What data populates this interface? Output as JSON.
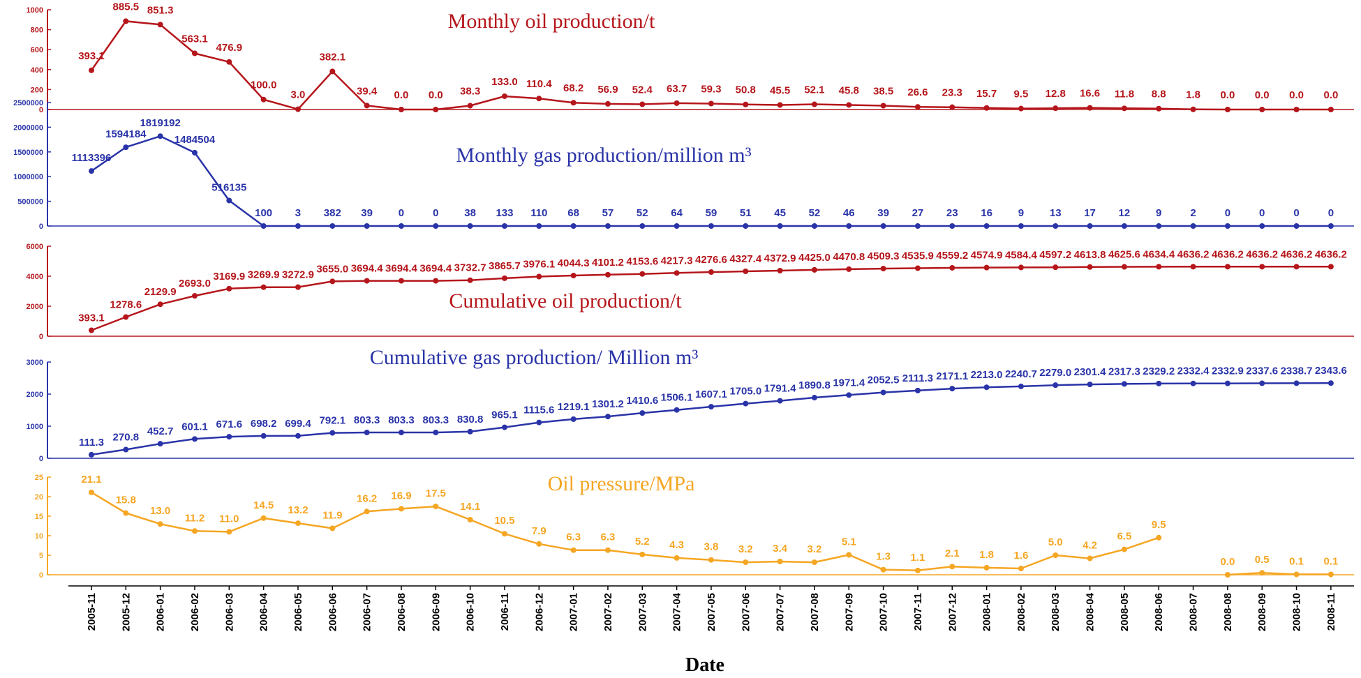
{
  "chart_data": {
    "type": "line",
    "xlabel": "Date",
    "categories": [
      "2005-11",
      "2005-12",
      "2006-01",
      "2006-02",
      "2006-03",
      "2006-04",
      "2006-05",
      "2006-06",
      "2006-07",
      "2006-08",
      "2006-09",
      "2006-10",
      "2006-11",
      "2006-12",
      "2007-01",
      "2007-02",
      "2007-03",
      "2007-04",
      "2007-05",
      "2007-06",
      "2007-07",
      "2007-08",
      "2007-09",
      "2007-10",
      "2007-11",
      "2007-12",
      "2008-01",
      "2008-02",
      "2008-03",
      "2008-04",
      "2008-05",
      "2008-06",
      "2008-07",
      "2008-08",
      "2008-09",
      "2008-10",
      "2008-11"
    ],
    "panels": [
      {
        "title": "Monthly oil production/t",
        "color": "#b5161b",
        "ylim": [
          0,
          1000
        ],
        "yticks": [
          0,
          200,
          400,
          600,
          800,
          1000
        ],
        "ytick_labels": [
          "0",
          "200",
          "400",
          "600",
          "800",
          "1000"
        ],
        "values": [
          393.1,
          885.5,
          851.3,
          563.1,
          476.9,
          100.0,
          3.0,
          382.1,
          39.4,
          0.0,
          0.0,
          38.3,
          133.0,
          110.4,
          68.2,
          56.9,
          52.4,
          63.7,
          59.3,
          50.8,
          45.5,
          52.1,
          45.8,
          38.5,
          26.6,
          23.3,
          15.7,
          9.5,
          12.8,
          16.6,
          11.8,
          8.8,
          1.8,
          0.0,
          0.0,
          0.0,
          0.0
        ],
        "labels": [
          "393.1",
          "885.5",
          "851.3",
          "563.1",
          "476.9",
          "100.0",
          "3.0",
          "382.1",
          "39.4",
          "0.0",
          "0.0",
          "38.3",
          "133.0",
          "110.4",
          "68.2",
          "56.9",
          "52.4",
          "63.7",
          "59.3",
          "50.8",
          "45.5",
          "52.1",
          "45.8",
          "38.5",
          "26.6",
          "23.3",
          "15.7",
          "9.5",
          "12.8",
          "16.6",
          "11.8",
          "8.8",
          "1.8",
          "0.0",
          "0.0",
          "0.0",
          "0.0"
        ]
      },
      {
        "title": "Monthly gas production/million m³",
        "color": "#2a34a8",
        "ylim": [
          0,
          2500000
        ],
        "yticks": [
          0,
          500000,
          1000000,
          1500000,
          2000000,
          2500000
        ],
        "ytick_labels": [
          "0",
          "500000",
          "1000000",
          "1500000",
          "2000000",
          "2500000"
        ],
        "values": [
          1113396,
          1594184,
          1819192,
          1484504,
          516135,
          100,
          3,
          382,
          39,
          0,
          0,
          38,
          133,
          110,
          68,
          57,
          52,
          64,
          59,
          51,
          45,
          52,
          46,
          39,
          27,
          23,
          16,
          9,
          13,
          17,
          12,
          9,
          2,
          0,
          0,
          0,
          0
        ],
        "labels": [
          "1113396",
          "1594184",
          "1819192",
          "1484504",
          "516135",
          "100",
          "3",
          "382",
          "39",
          "0",
          "0",
          "38",
          "133",
          "110",
          "68",
          "57",
          "52",
          "64",
          "59",
          "51",
          "45",
          "52",
          "46",
          "39",
          "27",
          "23",
          "16",
          "9",
          "13",
          "17",
          "12",
          "9",
          "2",
          "0",
          "0",
          "0",
          "0"
        ]
      },
      {
        "title": "Cumulative oil production/t",
        "color": "#b5161b",
        "ylim": [
          0,
          6000
        ],
        "yticks": [
          0,
          2000,
          4000,
          6000
        ],
        "ytick_labels": [
          "0",
          "2000",
          "4000",
          "6000"
        ],
        "values": [
          393.1,
          1278.6,
          2129.9,
          2693.0,
          3169.9,
          3269.9,
          3272.9,
          3655.0,
          3694.4,
          3694.4,
          3694.4,
          3732.7,
          3865.7,
          3976.1,
          4044.3,
          4101.2,
          4153.6,
          4217.3,
          4276.6,
          4327.4,
          4372.9,
          4425.0,
          4470.8,
          4509.3,
          4535.9,
          4559.2,
          4574.9,
          4584.4,
          4597.2,
          4613.8,
          4625.6,
          4634.4,
          4636.2,
          4636.2,
          4636.2,
          4636.2,
          4636.2
        ],
        "labels": [
          "393.1",
          "1278.6",
          "2129.9",
          "2693.0",
          "3169.9",
          "3269.9",
          "3272.9",
          "3655.0",
          "3694.4",
          "3694.4",
          "3694.4",
          "3732.7",
          "3865.7",
          "3976.1",
          "4044.3",
          "4101.2",
          "4153.6",
          "4217.3",
          "4276.6",
          "4327.4",
          "4372.9",
          "4425.0",
          "4470.8",
          "4509.3",
          "4535.9",
          "4559.2",
          "4574.9",
          "4584.4",
          "4597.2",
          "4613.8",
          "4625.6",
          "4634.4",
          "4636.2",
          "4636.2",
          "4636.2",
          "4636.2",
          "4636.2"
        ]
      },
      {
        "title": "Cumulative gas production/ Million m³",
        "color": "#2a34a8",
        "ylim": [
          0,
          3000
        ],
        "yticks": [
          0,
          1000,
          2000,
          3000
        ],
        "ytick_labels": [
          "0",
          "1000",
          "2000",
          "3000"
        ],
        "values": [
          111.3,
          270.8,
          452.7,
          601.1,
          671.6,
          698.2,
          699.4,
          792.1,
          803.3,
          803.3,
          803.3,
          830.8,
          965.1,
          1115.6,
          1219.1,
          1301.2,
          1410.6,
          1506.1,
          1607.1,
          1705.0,
          1791.4,
          1890.8,
          1971.4,
          2052.5,
          2111.3,
          2171.1,
          2213.0,
          2240.7,
          2279.0,
          2301.4,
          2317.3,
          2329.2,
          2332.4,
          2332.9,
          2337.6,
          2338.7,
          2343.6
        ],
        "labels": [
          "111.3",
          "270.8",
          "452.7",
          "601.1",
          "671.6",
          "698.2",
          "699.4",
          "792.1",
          "803.3",
          "803.3",
          "803.3",
          "830.8",
          "965.1",
          "1115.6",
          "1219.1",
          "1301.2",
          "1410.6",
          "1506.1",
          "1607.1",
          "1705.0",
          "1791.4",
          "1890.8",
          "1971.4",
          "2052.5",
          "2111.3",
          "2171.1",
          "2213.0",
          "2240.7",
          "2279.0",
          "2301.4",
          "2317.3",
          "2329.2",
          "2332.4",
          "2332.9",
          "2337.6",
          "2338.7",
          "2343.6"
        ]
      },
      {
        "title": "Oil pressure/MPa",
        "color": "#f5a623",
        "ylim": [
          0,
          25
        ],
        "yticks": [
          0,
          5,
          10,
          15,
          20,
          25
        ],
        "ytick_labels": [
          "0",
          "5",
          "10",
          "15",
          "20",
          "25"
        ],
        "values": [
          21.1,
          15.8,
          13.0,
          11.2,
          11.0,
          14.5,
          13.2,
          11.9,
          16.2,
          16.9,
          17.5,
          14.1,
          10.5,
          7.9,
          6.3,
          6.3,
          5.2,
          4.3,
          3.8,
          3.2,
          3.4,
          3.2,
          5.1,
          1.3,
          1.1,
          2.1,
          1.8,
          1.6,
          5.0,
          4.2,
          6.5,
          9.5,
          null,
          0.0,
          0.5,
          0.1,
          0.1
        ],
        "labels": [
          "21.1",
          "15.8",
          "13.0",
          "11.2",
          "11.0",
          "14.5",
          "13.2",
          "11.9",
          "16.2",
          "16.9",
          "17.5",
          "14.1",
          "10.5",
          "7.9",
          "6.3",
          "6.3",
          "5.2",
          "4.3",
          "3.8",
          "3.2",
          "3.4",
          "3.2",
          "5.1",
          "1.3",
          "1.1",
          "2.1",
          "1.8",
          "1.6",
          "5.0",
          "4.2",
          "6.5",
          "9.5",
          "",
          "0.0",
          "0.5",
          "0.1",
          "0.1"
        ]
      }
    ]
  }
}
